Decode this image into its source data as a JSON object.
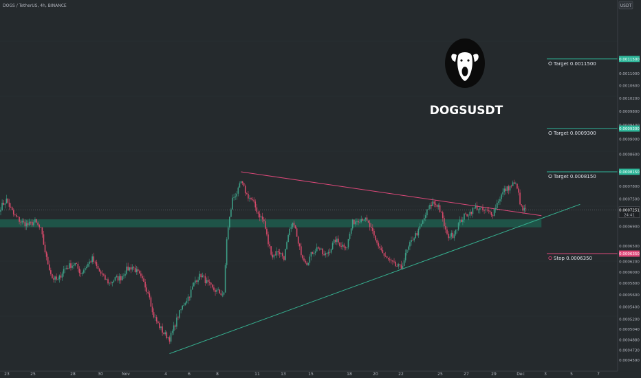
{
  "chart_header": "DOGS / TetherUS, 4h, BINANCE",
  "currency_label": "USDT",
  "chart_title": "DOGSUSDT",
  "logo_icon": "dog-face-icon",
  "colors": {
    "background": "#252a2d",
    "up_candle": "#3d9e86",
    "down_candle": "#d64a6a",
    "resistance_line": "#e0497b",
    "support_line": "#36b392",
    "zone_fill": "#1f5c4e",
    "target_line": "#2fb79a",
    "stop_line": "#e0497b"
  },
  "chart_data": {
    "type": "candlestick",
    "title": "DOGSUSDT",
    "y_axis": {
      "scale": "log",
      "range": [
        0.000455,
        0.00132
      ],
      "ticks": [
        "0.0011500",
        "0.0011000",
        "0.0010600",
        "0.0010200",
        "0.0009800",
        "0.0009400",
        "0.0009300",
        "0.0009000",
        "0.0008600",
        "0.0008150",
        "0.0007800",
        "0.0007500",
        "0.0007251",
        "0.0006900",
        "0.0006500",
        "0.0006350",
        "0.0006200",
        "0.0006000",
        "0.0005800",
        "0.0005600",
        "0.0005400",
        "0.0005200",
        "0.0005040",
        "0.0004880",
        "0.0004730",
        "0.0004590"
      ]
    },
    "x_axis": {
      "ticks": [
        "23",
        "25",
        "28",
        "30",
        "Nov",
        "4",
        "6",
        "8",
        "11",
        "13",
        "15",
        "18",
        "20",
        "22",
        "25",
        "27",
        "29",
        "Dec",
        "3",
        "5",
        "7"
      ]
    },
    "current_price": {
      "value": 0.0007251,
      "label": "0.0007251",
      "countdown": "24:41"
    },
    "levels": [
      {
        "name": "Target",
        "text": "Target 0.0011500",
        "axis_label": "0.0011500",
        "value": 0.00115,
        "kind": "target"
      },
      {
        "name": "Target",
        "text": "Target 0.0009300",
        "axis_label": "0.0009300",
        "value": 0.00093,
        "kind": "target"
      },
      {
        "name": "Target",
        "text": "Target 0.0008150",
        "axis_label": "0.0008150",
        "value": 0.000815,
        "kind": "target"
      },
      {
        "name": "Stop",
        "text": "Stop 0.0006350",
        "axis_label": "0.0006350",
        "value": 0.000635,
        "kind": "stop"
      }
    ],
    "zone": {
      "low": 0.000688,
      "high": 0.000705
    },
    "resistance_line": {
      "from": {
        "bar": 168,
        "price": 0.000815
      },
      "to": {
        "bar": 378,
        "price": 0.000713
      }
    },
    "support_line": {
      "from": {
        "bar": 118,
        "price": 0.000468
      },
      "to": {
        "bar": 405,
        "price": 0.000738
      }
    },
    "candle_count": 368,
    "anchors": [
      [
        0,
        0.000732
      ],
      [
        4,
        0.000748
      ],
      [
        9,
        0.000715
      ],
      [
        14,
        0.0007
      ],
      [
        19,
        0.000693
      ],
      [
        24,
        0.0007
      ],
      [
        28,
        0.000683
      ],
      [
        32,
        0.000625
      ],
      [
        36,
        0.00059
      ],
      [
        40,
        0.000585
      ],
      [
        44,
        0.000605
      ],
      [
        48,
        0.000612
      ],
      [
        52,
        0.000615
      ],
      [
        56,
        0.000598
      ],
      [
        60,
        0.000612
      ],
      [
        64,
        0.000625
      ],
      [
        68,
        0.000605
      ],
      [
        72,
        0.00059
      ],
      [
        76,
        0.00058
      ],
      [
        80,
        0.000588
      ],
      [
        84,
        0.00059
      ],
      [
        88,
        0.000605
      ],
      [
        92,
        0.00061
      ],
      [
        96,
        0.000598
      ],
      [
        100,
        0.00058
      ],
      [
        104,
        0.00056
      ],
      [
        106,
        0.00053
      ],
      [
        110,
        0.000512
      ],
      [
        114,
        0.000498
      ],
      [
        118,
        0.00049
      ],
      [
        120,
        0.0005
      ],
      [
        124,
        0.000525
      ],
      [
        128,
        0.000545
      ],
      [
        132,
        0.00056
      ],
      [
        136,
        0.000585
      ],
      [
        140,
        0.000595
      ],
      [
        144,
        0.000582
      ],
      [
        148,
        0.00057
      ],
      [
        152,
        0.000565
      ],
      [
        156,
        0.00056
      ],
      [
        158,
        0.000665
      ],
      [
        162,
        0.00075
      ],
      [
        166,
        0.00077
      ],
      [
        168,
        0.00079
      ],
      [
        172,
        0.00076
      ],
      [
        176,
        0.000745
      ],
      [
        180,
        0.000718
      ],
      [
        184,
        0.0007
      ],
      [
        187,
        0.000655
      ],
      [
        190,
        0.00063
      ],
      [
        194,
        0.00064
      ],
      [
        198,
        0.000628
      ],
      [
        202,
        0.00068
      ],
      [
        205,
        0.000698
      ],
      [
        208,
        0.000652
      ],
      [
        211,
        0.00063
      ],
      [
        214,
        0.000618
      ],
      [
        218,
        0.000638
      ],
      [
        222,
        0.000648
      ],
      [
        226,
        0.00063
      ],
      [
        230,
        0.000642
      ],
      [
        234,
        0.000662
      ],
      [
        238,
        0.000652
      ],
      [
        242,
        0.00065
      ],
      [
        246,
        0.000698
      ],
      [
        250,
        0.000705
      ],
      [
        254,
        0.000708
      ],
      [
        258,
        0.00069
      ],
      [
        262,
        0.00066
      ],
      [
        266,
        0.000642
      ],
      [
        268,
        0.00063
      ],
      [
        272,
        0.00062
      ],
      [
        276,
        0.000612
      ],
      [
        280,
        0.000608
      ],
      [
        284,
        0.00064
      ],
      [
        288,
        0.000665
      ],
      [
        292,
        0.00068
      ],
      [
        295,
        0.0007
      ],
      [
        298,
        0.000722
      ],
      [
        302,
        0.000742
      ],
      [
        306,
        0.000735
      ],
      [
        308,
        0.000715
      ],
      [
        312,
        0.00067
      ],
      [
        316,
        0.000672
      ],
      [
        320,
        0.000695
      ],
      [
        324,
        0.000712
      ],
      [
        328,
        0.00072
      ],
      [
        332,
        0.000732
      ],
      [
        336,
        0.000725
      ],
      [
        340,
        0.000722
      ],
      [
        344,
        0.000718
      ],
      [
        348,
        0.000748
      ],
      [
        352,
        0.00077
      ],
      [
        356,
        0.000778
      ],
      [
        358,
        0.000785
      ],
      [
        361,
        0.00078
      ],
      [
        363,
        0.000738
      ],
      [
        365,
        0.000725
      ],
      [
        367,
        0.000725
      ]
    ]
  }
}
